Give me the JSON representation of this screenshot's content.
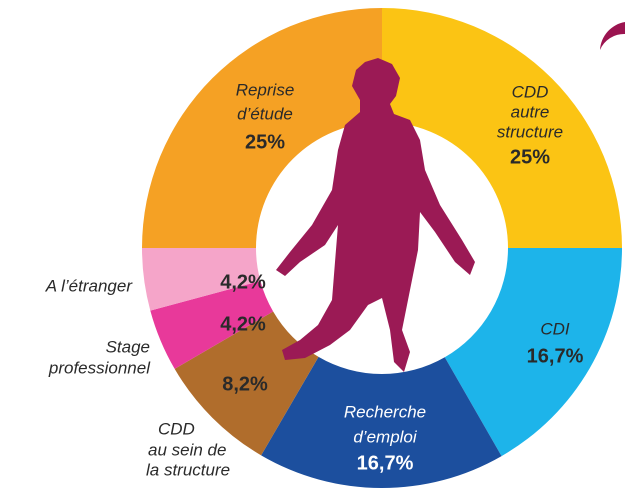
{
  "chart_data": {
    "type": "donut",
    "labels": [
      [
        "CDD",
        "autre",
        "structure"
      ],
      [
        "CDI"
      ],
      [
        "Recherche",
        "d’emploi"
      ],
      [
        "CDD",
        "au sein de",
        "la structure"
      ],
      [
        "Stage",
        "professionnel"
      ],
      [
        "A l’étranger"
      ],
      [
        "Reprise",
        "d’étude"
      ]
    ],
    "values": [
      25,
      16.7,
      16.7,
      8.2,
      4.2,
      4.2,
      25
    ],
    "value_labels": [
      "25%",
      "16,7%",
      "16,7%",
      "8,2%",
      "4,2%",
      "4,2%",
      "25%"
    ],
    "colors": [
      "#fbc414",
      "#1db4ea",
      "#1c4f9e",
      "#b06d2c",
      "#e8399a",
      "#f5a5c9",
      "#f5a124"
    ]
  }
}
